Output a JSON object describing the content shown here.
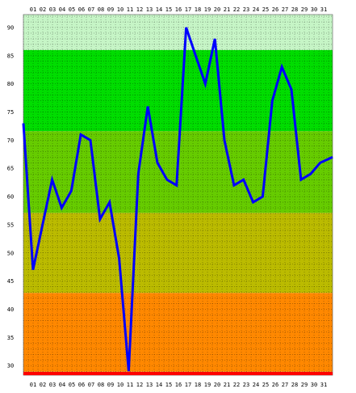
{
  "chart_data": {
    "type": "line",
    "title": "",
    "xlabel": "",
    "ylabel": "",
    "x_ticks": [
      "01",
      "02",
      "03",
      "04",
      "05",
      "06",
      "07",
      "08",
      "09",
      "10",
      "11",
      "12",
      "13",
      "14",
      "15",
      "16",
      "17",
      "18",
      "19",
      "20",
      "21",
      "22",
      "23",
      "24",
      "25",
      "26",
      "27",
      "28",
      "29",
      "30",
      "31"
    ],
    "y_ticks": [
      90,
      85,
      80,
      75,
      70,
      65,
      60,
      55,
      50,
      45,
      40,
      35,
      30
    ],
    "ylim": [
      28.3,
      92.3
    ],
    "grid": true,
    "legend": "none",
    "series": [
      {
        "color": "#0000ff",
        "x": [
          0.0,
          1,
          2,
          3,
          4,
          5,
          6,
          7,
          8,
          9,
          10,
          11,
          12,
          13,
          14,
          15,
          16,
          17,
          18,
          19,
          20,
          21,
          22,
          23,
          24,
          25,
          26,
          27,
          28,
          29,
          30,
          31,
          32.3
        ],
        "values": [
          73,
          47,
          55,
          63,
          58,
          61,
          71,
          70,
          56,
          59,
          49,
          29,
          64,
          76,
          66,
          63,
          62,
          90,
          85,
          80,
          88,
          70,
          62,
          63,
          59,
          60,
          77,
          83,
          79,
          63,
          64,
          66,
          67
        ]
      }
    ],
    "bands": [
      {
        "from": 86,
        "to": 92.3,
        "color": "#c6f5c6"
      },
      {
        "from": 71.6,
        "to": 86,
        "color": "#00dd00"
      },
      {
        "from": 57.1,
        "to": 71.6,
        "color": "#66cc00"
      },
      {
        "from": 42.9,
        "to": 57.1,
        "color": "#bbbb00"
      },
      {
        "from": 28.9,
        "to": 42.9,
        "color": "#ff8800"
      }
    ],
    "baseline": {
      "value": 28.6,
      "color": "#ff0000"
    }
  }
}
